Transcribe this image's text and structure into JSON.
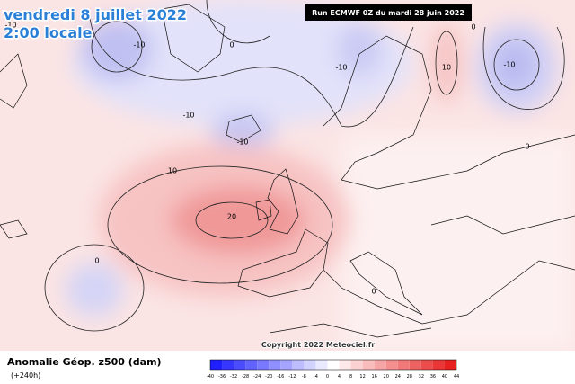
{
  "header": {
    "date": "vendredi 8 juillet 2022",
    "time": "2:00 locale",
    "run": "Run ECMWF 0Z du mardi 28 juin 2022"
  },
  "map": {
    "contour_labels": [
      "-10",
      "0",
      "-10",
      "-10",
      "-10",
      "10",
      "-10",
      "-10",
      "10",
      "20",
      "0",
      "0",
      "0",
      "0"
    ],
    "copyright": "Copyright 2022 Meteociel.fr"
  },
  "footer": {
    "title": "Anomalie Géop. z500 (dam)",
    "lead": "(+240h)",
    "colorbar_labels": [
      "-40",
      "-36",
      "-32",
      "-28",
      "-24",
      "-20",
      "-16",
      "-12",
      "-8",
      "-4",
      "0",
      "4",
      "8",
      "12",
      "16",
      "20",
      "24",
      "28",
      "32",
      "36",
      "40",
      "44"
    ]
  }
}
